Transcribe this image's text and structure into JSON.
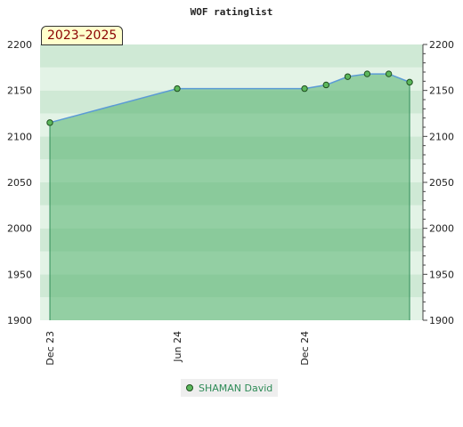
{
  "chart_data": {
    "type": "line",
    "title": "WOF ratinglist",
    "period_label": "2023–2025",
    "ylim": [
      1900,
      2200
    ],
    "y_ticks": [
      1900,
      1950,
      2000,
      2050,
      2100,
      2150,
      2200
    ],
    "x_ticks": [
      {
        "label": "Dec 23",
        "date": "2023-12-01"
      },
      {
        "label": "Jun 24",
        "date": "2024-06-01"
      },
      {
        "label": "Dec 24",
        "date": "2024-12-01"
      }
    ],
    "xlim": [
      "2023-12-01",
      "2025-05-15"
    ],
    "series": [
      {
        "name": "SHAMAN David",
        "points": [
          {
            "x": "2023-12-01",
            "y": 2115
          },
          {
            "x": "2024-06-01",
            "y": 2152
          },
          {
            "x": "2024-12-01",
            "y": 2152
          },
          {
            "x": "2025-01-01",
            "y": 2156
          },
          {
            "x": "2025-02-01",
            "y": 2165
          },
          {
            "x": "2025-03-01",
            "y": 2168
          },
          {
            "x": "2025-04-01",
            "y": 2168
          },
          {
            "x": "2025-05-01",
            "y": 2159
          }
        ]
      }
    ],
    "legend_position": "bottom-center",
    "grid": true,
    "colors": {
      "line": "#5b9bd5",
      "marker": "#5cb85c",
      "fill": "#52b06c",
      "drop_line": "#2e8b57",
      "legend_text": "#2e8b57",
      "badge_text": "#8b0000",
      "badge_bg": "#ffffcc"
    }
  }
}
